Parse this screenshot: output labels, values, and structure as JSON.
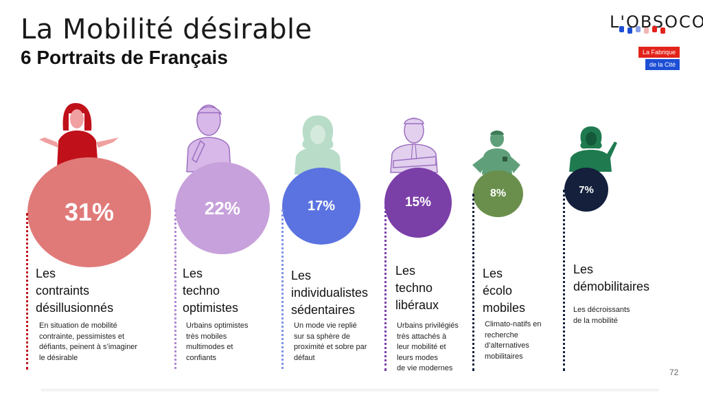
{
  "header": {
    "title": "La Mobilité désirable",
    "subtitle": "6 Portraits de Français"
  },
  "logos": {
    "obsoco": "L'OBSOCO",
    "fabrique_line1": "La Fabrique",
    "fabrique_line2": "de la Cité"
  },
  "colors": {
    "contraints": "#e07a79",
    "techno_optimistes": "#c7a1db",
    "individualistes": "#5b73e0",
    "techno_liberaux": "#7b3fa8",
    "ecolo": "#6a8f4c",
    "demobilitaires": "#14203c"
  },
  "portraits": [
    {
      "percent": "31%",
      "heading": [
        "Les",
        "contraints",
        "désillusionnés"
      ],
      "description": [
        "En situation de mobilité",
        "contrainte, pessimistes et",
        "défiants, peinent à s’imaginer",
        "le désirable"
      ],
      "icon": "shrugging-woman-icon"
    },
    {
      "percent": "22%",
      "heading": [
        "Les",
        "techno",
        "optimistes"
      ],
      "description": [
        "Urbains optimistes",
        "très mobiles",
        "multimodes et",
        "confiants"
      ],
      "icon": "thinking-man-icon"
    },
    {
      "percent": "17%",
      "heading": [
        "Les",
        "individualistes",
        "sédentaires"
      ],
      "description": [
        "Un mode vie replié",
        "sur sa sphère de",
        "proximité et sobre par",
        "défaut"
      ],
      "icon": "curly-hair-person-icon"
    },
    {
      "percent": "15%",
      "heading": [
        "Les",
        "techno",
        "libéraux"
      ],
      "description": [
        "Urbains privilégiés",
        "très attachés à",
        "leur mobilité et",
        "leurs modes",
        "de vie modernes"
      ],
      "icon": "businessman-crossed-arms-icon"
    },
    {
      "percent": "8%",
      "heading": [
        "Les",
        "écolo",
        "mobiles"
      ],
      "description": [
        "Climato-natifs en",
        "recherche",
        "d’alternatives",
        "mobilitaires"
      ],
      "icon": "hands-on-hips-person-icon"
    },
    {
      "percent": "7%",
      "heading": [
        "Les",
        "démobilitaires"
      ],
      "description": [
        "Les décroissants",
        "de la mobilité"
      ],
      "icon": "pointing-person-icon"
    }
  ],
  "page_number": "72"
}
